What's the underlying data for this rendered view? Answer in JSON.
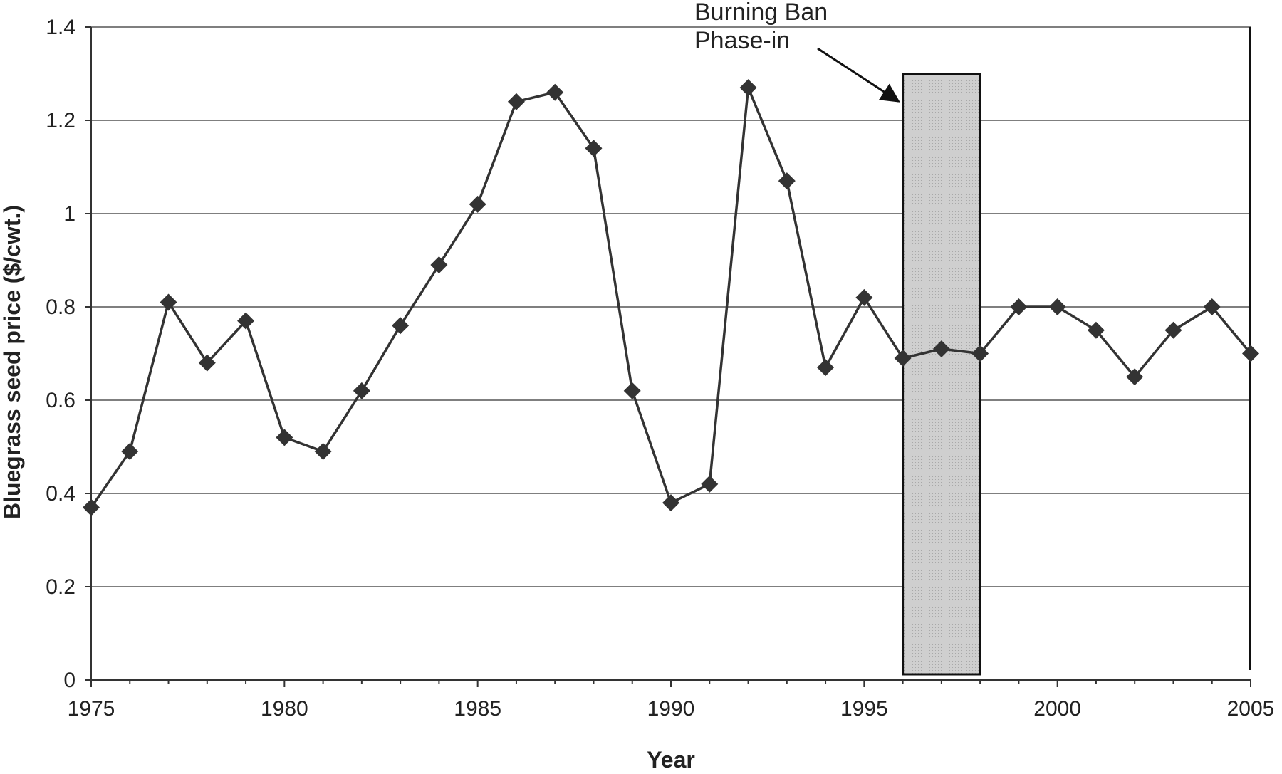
{
  "chart_data": {
    "type": "line",
    "title": "",
    "xlabel": "Year",
    "ylabel": "Bluegrass seed price ($/cwt.)",
    "xlim": [
      1975,
      2005
    ],
    "ylim": [
      0,
      1.4
    ],
    "x_ticks": [
      1975,
      1980,
      1985,
      1990,
      1995,
      2000,
      2005
    ],
    "y_ticks": [
      0,
      0.2,
      0.4,
      0.6,
      0.8,
      1,
      1.2,
      1.4
    ],
    "grid": "horizontal",
    "legend": "none",
    "series": [
      {
        "marker": "diamond",
        "color": "#333333",
        "x": [
          1975,
          1976,
          1977,
          1978,
          1979,
          1980,
          1981,
          1982,
          1983,
          1984,
          1985,
          1986,
          1987,
          1988,
          1989,
          1990,
          1991,
          1992,
          1993,
          1994,
          1995,
          1996,
          1997,
          1998,
          1999,
          2000,
          2001,
          2002,
          2003,
          2004,
          2005
        ],
        "values": [
          0.37,
          0.49,
          0.81,
          0.68,
          0.77,
          0.52,
          0.49,
          0.62,
          0.76,
          0.89,
          1.02,
          1.24,
          1.26,
          1.14,
          0.62,
          0.38,
          0.42,
          1.27,
          1.07,
          0.67,
          0.82,
          0.69,
          0.71,
          0.7,
          0.8,
          0.8,
          0.75,
          0.65,
          0.75,
          0.8,
          0.7
        ]
      }
    ],
    "shaded_region": {
      "x_start": 1996,
      "x_end": 1998,
      "y_top": 1.3,
      "color": "#c8c8c8"
    },
    "reference_line_x": 2005,
    "annotation": {
      "lines": [
        "Burning Ban",
        "Phase-in"
      ],
      "arrow_target_x": 1996,
      "arrow_target_y": 1.25
    }
  }
}
